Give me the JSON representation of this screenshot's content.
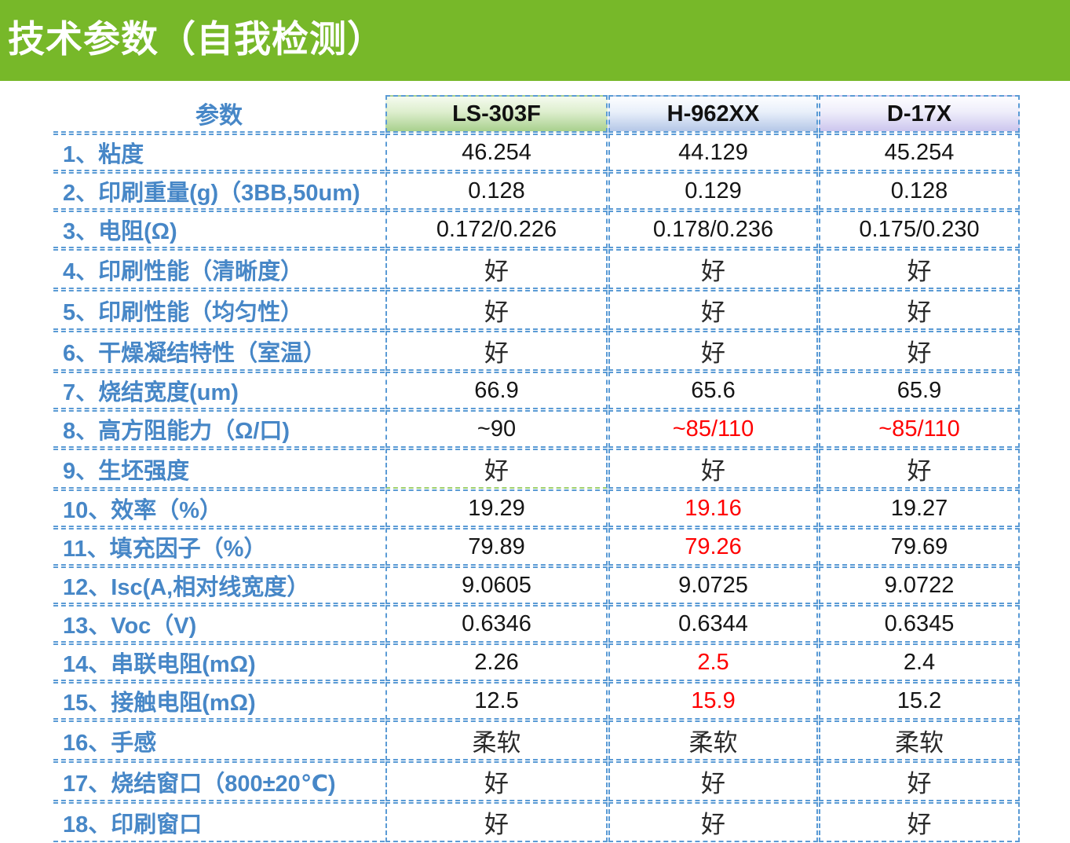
{
  "title": "技术参数（自我检测）",
  "colors": {
    "banner_green": "#77b829",
    "border_blue": "#5b9bd5",
    "param_text_blue": "#4787c7",
    "alert_red": "#ff0000",
    "header_green": "#a8d08d",
    "header_blue": "#b4c7e7",
    "header_purple": "#ccc6ee"
  },
  "table": {
    "param_header": "参数",
    "columns": [
      {
        "label": "LS-303F",
        "theme": "green"
      },
      {
        "label": "H-962XX",
        "theme": "blue"
      },
      {
        "label": "D-17X",
        "theme": "purple"
      }
    ],
    "rows": [
      {
        "param": "1、粘度",
        "values": [
          {
            "text": "46.254",
            "style": "num"
          },
          {
            "text": "44.129",
            "style": "num"
          },
          {
            "text": "45.254",
            "style": "num"
          }
        ]
      },
      {
        "param": "2、印刷重量(g)（3BB,50um)",
        "values": [
          {
            "text": "0.128",
            "style": "num"
          },
          {
            "text": "0.129",
            "style": "num"
          },
          {
            "text": "0.128",
            "style": "num"
          }
        ]
      },
      {
        "param": "3、电阻(Ω)",
        "values": [
          {
            "text": "0.172/0.226",
            "style": "num"
          },
          {
            "text": "0.178/0.236",
            "style": "num"
          },
          {
            "text": "0.175/0.230",
            "style": "num"
          }
        ]
      },
      {
        "param": "4、印刷性能（清晰度）",
        "values": [
          {
            "text": "好",
            "style": "serif"
          },
          {
            "text": "好",
            "style": "serif"
          },
          {
            "text": "好",
            "style": "serif"
          }
        ]
      },
      {
        "param": "5、印刷性能（均匀性）",
        "values": [
          {
            "text": "好",
            "style": "serif"
          },
          {
            "text": "好",
            "style": "serif"
          },
          {
            "text": "好",
            "style": "serif"
          }
        ]
      },
      {
        "param": "6、干燥凝结特性（室温）",
        "values": [
          {
            "text": "好",
            "style": "serif"
          },
          {
            "text": "好",
            "style": "serif"
          },
          {
            "text": "好",
            "style": "serif"
          }
        ]
      },
      {
        "param": "7、烧结宽度(um)",
        "values": [
          {
            "text": "66.9",
            "style": "num"
          },
          {
            "text": "65.6",
            "style": "num"
          },
          {
            "text": "65.9",
            "style": "num"
          }
        ]
      },
      {
        "param": "8、高方阻能力（Ω/口)",
        "values": [
          {
            "text": "~90",
            "style": "num"
          },
          {
            "text": "~85/110",
            "style": "red"
          },
          {
            "text": "~85/110",
            "style": "red"
          }
        ]
      },
      {
        "param": "9、生坯强度",
        "values": [
          {
            "text": "好",
            "style": "serif"
          },
          {
            "text": "好",
            "style": "serif"
          },
          {
            "text": "好",
            "style": "serif"
          }
        ]
      },
      {
        "param": "10、效率（%）",
        "values": [
          {
            "text": "19.29",
            "style": "num"
          },
          {
            "text": "19.16",
            "style": "red"
          },
          {
            "text": "19.27",
            "style": "num"
          }
        ]
      },
      {
        "param": "11、填充因子（%）",
        "values": [
          {
            "text": "79.89",
            "style": "num"
          },
          {
            "text": "79.26",
            "style": "red"
          },
          {
            "text": "79.69",
            "style": "num"
          }
        ]
      },
      {
        "param": "12、Isc(A,相对线宽度）",
        "values": [
          {
            "text": "9.0605",
            "style": "num"
          },
          {
            "text": "9.0725",
            "style": "num"
          },
          {
            "text": "9.0722",
            "style": "num"
          }
        ]
      },
      {
        "param": "13、Voc（V)",
        "values": [
          {
            "text": "0.6346",
            "style": "num"
          },
          {
            "text": "0.6344",
            "style": "num"
          },
          {
            "text": "0.6345",
            "style": "num"
          }
        ]
      },
      {
        "param": "14、串联电阻(mΩ)",
        "values": [
          {
            "text": "2.26",
            "style": "num"
          },
          {
            "text": "2.5",
            "style": "red"
          },
          {
            "text": "2.4",
            "style": "num"
          }
        ]
      },
      {
        "param": "15、接触电阻(mΩ)",
        "values": [
          {
            "text": "12.5",
            "style": "num"
          },
          {
            "text": "15.9",
            "style": "red"
          },
          {
            "text": "15.2",
            "style": "num"
          }
        ]
      },
      {
        "param": "16、手感",
        "values": [
          {
            "text": "柔软",
            "style": "serif"
          },
          {
            "text": "柔软",
            "style": "serif"
          },
          {
            "text": "柔软",
            "style": "serif"
          }
        ]
      },
      {
        "param": "17、烧结窗口（800±20℃)",
        "values": [
          {
            "text": "好",
            "style": "serif"
          },
          {
            "text": "好",
            "style": "serif"
          },
          {
            "text": "好",
            "style": "serif"
          }
        ]
      },
      {
        "param": "18、印刷窗口",
        "values": [
          {
            "text": "好",
            "style": "serif"
          },
          {
            "text": "好",
            "style": "serif"
          },
          {
            "text": "好",
            "style": "serif"
          }
        ]
      }
    ]
  }
}
